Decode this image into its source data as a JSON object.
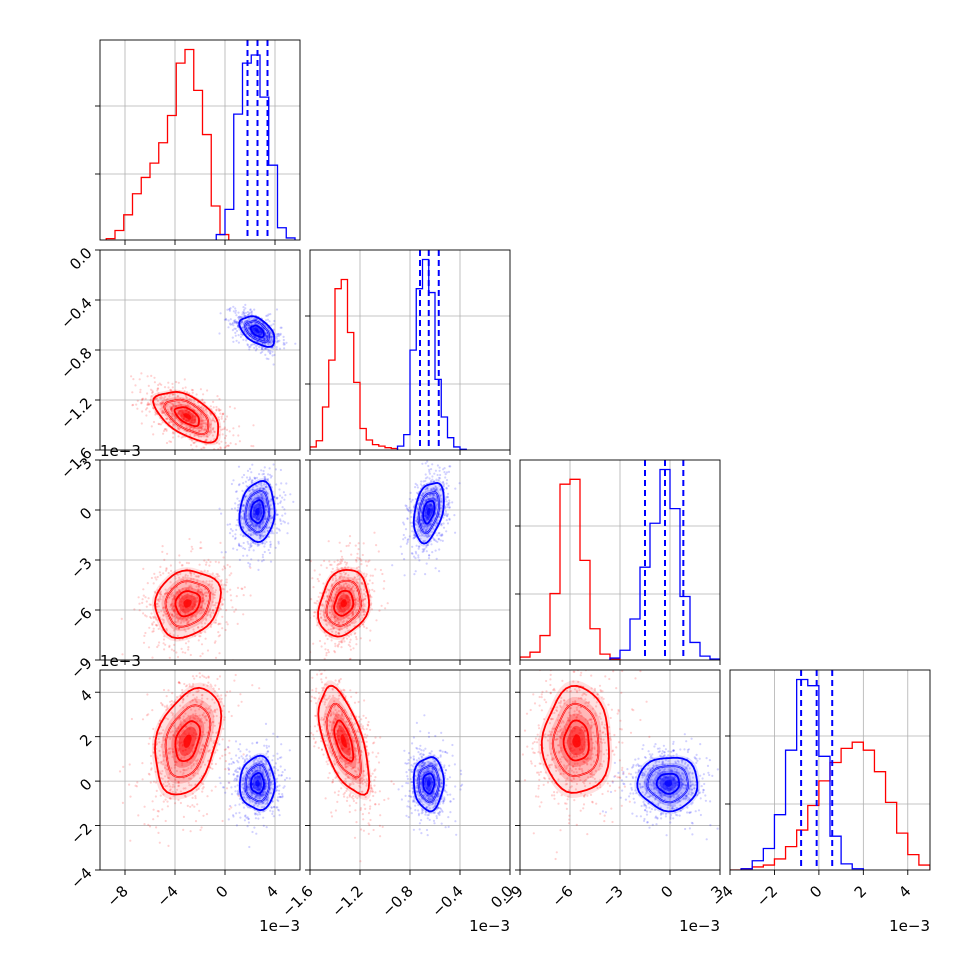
{
  "chart_data": {
    "type": "corner",
    "n_params": 4,
    "colors": {
      "red": "#ff0000",
      "blue": "#0000ff"
    },
    "grid": true,
    "params": [
      {
        "range": [
          -10,
          6
        ],
        "ticks": [
          -8,
          -4,
          0,
          4
        ],
        "tick_labels": [
          "−8",
          "−4",
          "0",
          "4"
        ],
        "offset_label": "1e−3",
        "red": {
          "mean": -3.0,
          "sd": 1.3
        },
        "blue": {
          "mean": 2.6,
          "sd": 0.7
        }
      },
      {
        "range": [
          -1.6,
          0.0
        ],
        "ticks": [
          -1.6,
          -1.2,
          -0.8,
          -0.4,
          0.0
        ],
        "tick_labels": [
          "−1.6",
          "−1.2",
          "−0.8",
          "−0.4",
          "0.0"
        ],
        "offset_label": "1e−3",
        "red": {
          "mean": -1.33,
          "sd": 0.1
        },
        "blue": {
          "mean": -0.65,
          "sd": 0.06
        }
      },
      {
        "range": [
          -9,
          3
        ],
        "ticks": [
          -9,
          -6,
          -3,
          0,
          3
        ],
        "tick_labels": [
          "−9",
          "−6",
          "−3",
          "0",
          "3"
        ],
        "offset_label": "1e−3",
        "red": {
          "mean": -5.6,
          "sd": 1.0
        },
        "blue": {
          "mean": -0.1,
          "sd": 0.9
        }
      },
      {
        "range": [
          -4,
          5
        ],
        "ticks": [
          -4,
          -2,
          0,
          2,
          4
        ],
        "tick_labels": [
          "−4",
          "−2",
          "0",
          "2",
          "4"
        ],
        "offset_label": "1e−3",
        "red": {
          "mean": 1.8,
          "sd": 1.2
        },
        "blue": {
          "mean": -0.1,
          "sd": 0.6
        }
      }
    ],
    "pairs": [
      {
        "row": 1,
        "col": 0,
        "red_rho": -0.55,
        "blue_rho": -0.5
      },
      {
        "row": 2,
        "col": 0,
        "red_rho": 0.15,
        "blue_rho": 0.1
      },
      {
        "row": 2,
        "col": 1,
        "red_rho": 0.2,
        "blue_rho": 0.35
      },
      {
        "row": 3,
        "col": 0,
        "red_rho": 0.35,
        "blue_rho": 0.0
      },
      {
        "row": 3,
        "col": 1,
        "red_rho": -0.6,
        "blue_rho": 0.0
      },
      {
        "row": 3,
        "col": 2,
        "red_rho": 0.0,
        "blue_rho": 0.0
      }
    ],
    "quantiles": [
      {
        "param": 0,
        "values": [
          1.8,
          2.6,
          3.4
        ]
      },
      {
        "param": 1,
        "values": [
          -0.72,
          -0.65,
          -0.57
        ]
      },
      {
        "param": 2,
        "values": [
          -1.5,
          -0.3,
          0.8
        ]
      },
      {
        "param": 3,
        "values": [
          -0.8,
          -0.1,
          0.6
        ]
      }
    ],
    "histograms": [
      {
        "param": 0,
        "red": {
          "edges": [
            -9.5,
            -8.8,
            -8.1,
            -7.4,
            -6.7,
            -6.0,
            -5.3,
            -4.6,
            -3.9,
            -3.2,
            -2.5,
            -1.8,
            -1.1,
            -0.4,
            0.3
          ],
          "counts": [
            0.2,
            1.4,
            3.7,
            6.8,
            9.2,
            11.3,
            14.3,
            18.3,
            26.0,
            28.0,
            22.0,
            15.5,
            5.0,
            0.8
          ]
        },
        "blue": {
          "edges": [
            -0.7,
            0.0,
            0.7,
            1.4,
            2.1,
            2.8,
            3.5,
            4.2,
            4.9,
            5.6
          ],
          "counts": [
            0.8,
            4.5,
            18.5,
            26.0,
            27.2,
            21.0,
            11.0,
            1.8,
            0.3
          ]
        }
      },
      {
        "param": 1,
        "red": {
          "edges": [
            -1.6,
            -1.55,
            -1.5,
            -1.45,
            -1.4,
            -1.35,
            -1.3,
            -1.25,
            -1.2,
            -1.15,
            -1.1,
            -1.05,
            -1.0,
            -0.95,
            -0.9
          ],
          "counts": [
            0.4,
            1.2,
            5.6,
            11.7,
            21.0,
            22.2,
            15.3,
            8.8,
            2.8,
            1.3,
            0.7,
            0.5,
            0.3,
            0.2
          ]
        },
        "blue": {
          "edges": [
            -0.9,
            -0.85,
            -0.8,
            -0.75,
            -0.7,
            -0.65,
            -0.6,
            -0.55,
            -0.5,
            -0.45,
            -0.4,
            -0.35
          ],
          "counts": [
            0.5,
            2.0,
            13.0,
            21.0,
            24.8,
            20.5,
            9.2,
            4.3,
            1.6,
            0.4,
            0.1
          ]
        }
      },
      {
        "param": 2,
        "red": {
          "edges": [
            -9.0,
            -8.4,
            -7.8,
            -7.2,
            -6.6,
            -6.0,
            -5.4,
            -4.8,
            -4.2,
            -3.6,
            -3.0
          ],
          "counts": [
            0.3,
            0.8,
            2.5,
            6.8,
            18.0,
            18.5,
            10.2,
            3.2,
            0.6,
            0.1
          ]
        },
        "blue": {
          "edges": [
            -3.6,
            -3.0,
            -2.4,
            -1.8,
            -1.2,
            -0.6,
            0.0,
            0.6,
            1.2,
            1.8,
            2.4,
            3.0
          ],
          "counts": [
            0.2,
            1.0,
            4.2,
            9.5,
            14.0,
            19.5,
            15.5,
            6.5,
            1.8,
            0.4,
            0.1
          ]
        }
      },
      {
        "param": 3,
        "red": {
          "edges": [
            -4.0,
            -3.5,
            -3.0,
            -2.5,
            -2.0,
            -1.5,
            -1.0,
            -0.5,
            0.0,
            0.5,
            1.0,
            1.5,
            2.0,
            2.5,
            3.0,
            3.5,
            4.0,
            4.5,
            5.0
          ],
          "counts": [
            0.0,
            0.2,
            0.5,
            0.8,
            1.8,
            3.8,
            6.5,
            10.5,
            14.5,
            17.5,
            19.8,
            20.8,
            19.5,
            16.0,
            11.0,
            6.0,
            2.5,
            0.8
          ]
        },
        "blue": {
          "edges": [
            -3.5,
            -3.0,
            -2.5,
            -2.0,
            -1.5,
            -1.0,
            -0.5,
            0.0,
            0.5,
            1.0,
            1.5,
            2.0
          ],
          "counts": [
            0.2,
            1.5,
            3.5,
            9.0,
            19.5,
            31.0,
            30.0,
            18.5,
            5.5,
            1.0,
            0.2
          ]
        }
      }
    ]
  }
}
